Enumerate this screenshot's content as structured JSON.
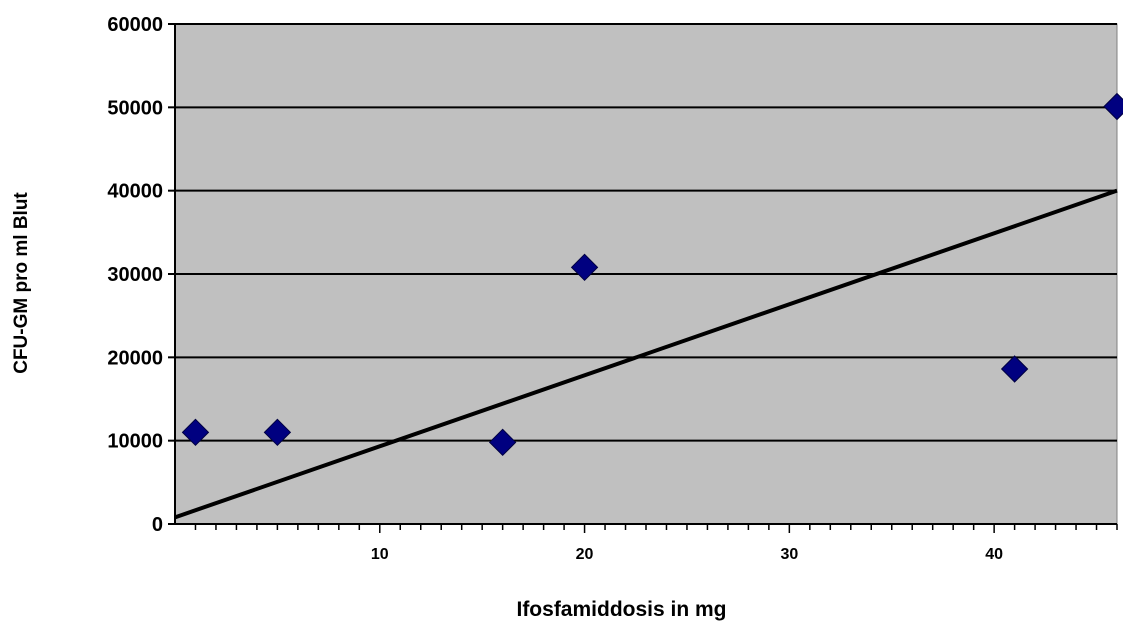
{
  "chart_data": {
    "type": "scatter",
    "xlabel": "Ifosfamiddosis in mg",
    "ylabel": "CFU-GM pro ml Blut",
    "xlim": [
      0,
      46
    ],
    "ylim": [
      0,
      60000
    ],
    "x_ticks": [
      10,
      20,
      30,
      40
    ],
    "y_ticks": [
      0,
      10000,
      20000,
      30000,
      40000,
      50000,
      60000
    ],
    "grid": true,
    "background_color": "#c0c0c0",
    "series": [
      {
        "marker": "diamond",
        "color": "#000080",
        "points": [
          {
            "x": 1,
            "y": 11000
          },
          {
            "x": 5,
            "y": 11000
          },
          {
            "x": 16,
            "y": 9800
          },
          {
            "x": 20,
            "y": 30800
          },
          {
            "x": 41,
            "y": 18600
          },
          {
            "x": 46,
            "y": 50100
          }
        ]
      }
    ],
    "trendline": {
      "type": "linear",
      "color": "#000000",
      "start": {
        "x": 0,
        "y": 800
      },
      "end": {
        "x": 46,
        "y": 40000
      }
    }
  }
}
